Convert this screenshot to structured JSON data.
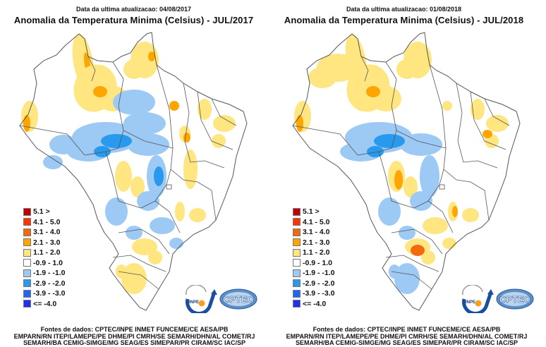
{
  "colors": {
    "scale": [
      "#c00000",
      "#ff3300",
      "#f26a10",
      "#ffa500",
      "#ffe680",
      "#ffffff",
      "#9ccaf5",
      "#2999ee",
      "#1e66f5",
      "#2030f0"
    ],
    "outline": "#555555"
  },
  "legend": [
    {
      "label": "5.1 >"
    },
    {
      "label": "4.1 - 5.0"
    },
    {
      "label": "3.1 - 4.0"
    },
    {
      "label": "2.1 - 3.0"
    },
    {
      "label": "1.1 - 2.0"
    },
    {
      "label": "-0.9 - 1.0"
    },
    {
      "label": "-1.9 - -1.0"
    },
    {
      "label": "-2.9 - -2.0"
    },
    {
      "label": "-3.9 - -3.0"
    },
    {
      "label": "<= -4.0"
    }
  ],
  "logo": {
    "inpe": "INPE",
    "cptec": "CPTEC"
  },
  "panels": [
    {
      "updated": "Data da ultima atualizacao: 04/08/2017",
      "title": "Anomalia da Temperatura Minima (Celsius) - JUL/2017",
      "sources": [
        "Fontes de dados: CPTEC/INPE INMET FUNCEME/CE AESA/PB",
        "EMPARN/RN ITEP/LAMEPE/PE DHME/PI CMRH/SE SEMARH/DHN/AL COMET/RJ",
        "SEMARH/BA CEMIG-SIMGE/MG SEAG/ES SIMEPAR/PR CIRAM/SC IAC/SP"
      ],
      "anomalies": [
        {
          "region": "Roraima",
          "class": 4
        },
        {
          "region": "Roraima-core",
          "class": 3
        },
        {
          "region": "Amapa",
          "class": 4
        },
        {
          "region": "Amapa-core",
          "class": 3
        },
        {
          "region": "Amazonas-central",
          "class": 4
        },
        {
          "region": "Amazonas-central-core",
          "class": 3
        },
        {
          "region": "Acre-west",
          "class": 4
        },
        {
          "region": "Acre-west-core",
          "class": 3
        },
        {
          "region": "Para-south",
          "class": 6
        },
        {
          "region": "MatoGrosso-north",
          "class": 6
        },
        {
          "region": "MatoGrosso-north-core",
          "class": 7
        },
        {
          "region": "Rondonia",
          "class": 6
        },
        {
          "region": "MatoGrosso-center",
          "class": 4
        },
        {
          "region": "Goias",
          "class": 6
        },
        {
          "region": "Goias-core",
          "class": 7
        },
        {
          "region": "Tocantins-east",
          "class": 4
        },
        {
          "region": "Tocantins-core",
          "class": 3
        },
        {
          "region": "Maranhao",
          "class": 3
        },
        {
          "region": "Nordeste",
          "class": 4
        },
        {
          "region": "MinasGerais",
          "class": 4
        },
        {
          "region": "MatoGrossoSul",
          "class": 6
        },
        {
          "region": "SaoPaulo",
          "class": 6
        },
        {
          "region": "Parana",
          "class": 4
        },
        {
          "region": "RioGrandeSul",
          "class": 4
        }
      ]
    },
    {
      "updated": "Data da ultima atualizacao: 01/08/2018",
      "title": "Anomalia da Temperatura Minima (Celsius) - JUL/2018",
      "sources": [
        "Fontes de dados: CPTEC/INPE INMET FUNCEME/CE AESA/PB",
        "EMPARN/RN ITEP/LAMEPE/PE DHME/PI CMRH/SE SEMARH/DHN/AL COMET/RJ",
        "SEMARH/BA CEMIG-SIMGE/MG SEAG/ES SIMEPAR/PR CIRAM/SC IAC/SP"
      ],
      "anomalies": [
        {
          "region": "Amazonas-north",
          "class": 4
        },
        {
          "region": "Roraima",
          "class": 4
        },
        {
          "region": "Amazonas-central",
          "class": 4
        },
        {
          "region": "Amazonas-central-core",
          "class": 3
        },
        {
          "region": "Acre-west",
          "class": 4
        },
        {
          "region": "Acre-west-core",
          "class": 3
        },
        {
          "region": "Amapa",
          "class": 4
        },
        {
          "region": "MatoGrosso-north",
          "class": 6
        },
        {
          "region": "MatoGrosso-north-core",
          "class": 7
        },
        {
          "region": "MatoGrosso-center",
          "class": 4
        },
        {
          "region": "MatoGrosso-center-core",
          "class": 3
        },
        {
          "region": "Goias",
          "class": 6
        },
        {
          "region": "Maranhao",
          "class": 4
        },
        {
          "region": "Nordeste",
          "class": 4
        },
        {
          "region": "Nordeste-core",
          "class": 3
        },
        {
          "region": "MinasGerais",
          "class": 4
        },
        {
          "region": "MinasGerais-core",
          "class": 3
        },
        {
          "region": "MatoGrossoSul",
          "class": 6
        },
        {
          "region": "SaoPaulo",
          "class": 4
        },
        {
          "region": "Parana",
          "class": 4
        },
        {
          "region": "Parana-core",
          "class": 2
        },
        {
          "region": "RioGrandeSul",
          "class": 6
        }
      ]
    }
  ]
}
